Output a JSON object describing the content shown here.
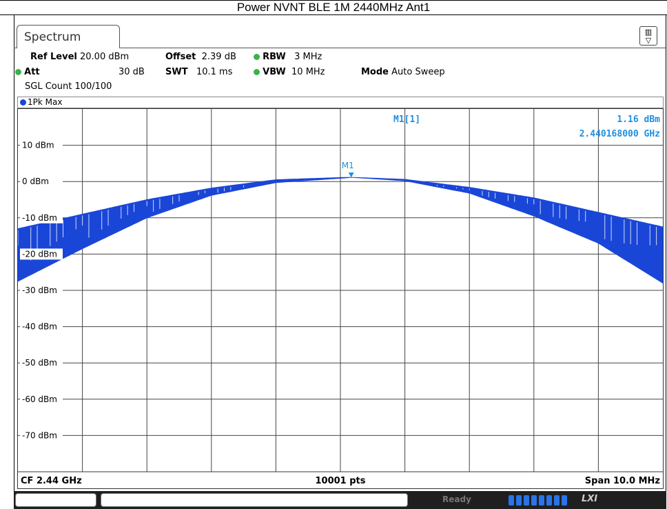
{
  "window": {
    "title": "Power NVNT BLE 1M 2440MHz Ant1"
  },
  "tab": {
    "label": "Spectrum"
  },
  "settings": {
    "ref_level_label": "Ref Level",
    "ref_level_value": "20.00 dBm",
    "offset_label": "Offset",
    "offset_value": "2.39 dB",
    "rbw_label": "RBW",
    "rbw_value": "3 MHz",
    "att_label": "Att",
    "att_value": "30 dB",
    "swt_label": "SWT",
    "swt_value": "10.1 ms",
    "vbw_label": "VBW",
    "vbw_value": "10 MHz",
    "mode_label": "Mode",
    "mode_value": "Auto Sweep",
    "sgl_count": "SGL Count 100/100"
  },
  "trace": {
    "label": "1Pk Max",
    "color": "#1a46d8"
  },
  "marker": {
    "name": "M1",
    "readout_label": "M1[1]",
    "level": "1.16 dBm",
    "frequency": "2.440168000 GHz",
    "color": "#1e8fe0"
  },
  "footer": {
    "center_freq": "CF 2.44 GHz",
    "points": "10001 pts",
    "span": "Span 10.0 MHz"
  },
  "status": {
    "ready": "Ready",
    "lxi": "LXI"
  },
  "chart_data": {
    "type": "line",
    "title": "",
    "xlabel": "",
    "ylabel": "",
    "ylim": [
      -80,
      20
    ],
    "xlim": [
      2.435,
      2.445
    ],
    "x_unit": "GHz",
    "y_tick_labels": [
      "10 dBm",
      "0 dBm",
      "-10 dBm",
      "-20 dBm",
      "-30 dBm",
      "-40 dBm",
      "-50 dBm",
      "-60 dBm",
      "-70 dBm"
    ],
    "y_ticks": [
      10,
      0,
      -10,
      -20,
      -30,
      -40,
      -50,
      -60,
      -70
    ],
    "grid": true,
    "series": [
      {
        "x": [
          2.435,
          2.436,
          2.437,
          2.438,
          2.439,
          2.44,
          2.44017,
          2.441,
          2.442,
          2.443,
          2.444,
          2.445
        ],
        "upper": [
          -13,
          -9,
          -5,
          -1.8,
          0.5,
          1.1,
          1.16,
          0.6,
          -1.6,
          -4.5,
          -8.5,
          -12.5
        ],
        "lower": [
          -27.5,
          -18.5,
          -10,
          -3.8,
          -0.3,
          0.9,
          1.16,
          0.2,
          -3.2,
          -9.5,
          -17,
          -28
        ]
      }
    ],
    "marker": {
      "x": 2.440168,
      "y": 1.16
    }
  }
}
